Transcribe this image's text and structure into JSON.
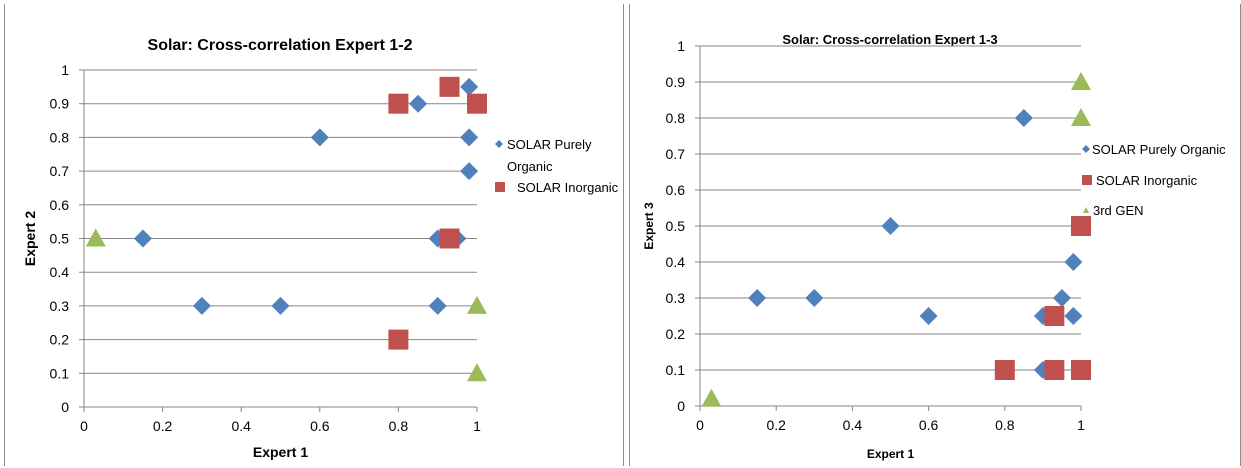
{
  "chart_data": [
    {
      "type": "scatter",
      "title": "Solar: Cross-correlation Expert 1-2",
      "xlabel": "Expert 1",
      "ylabel": "Expert 2",
      "xlim": [
        0,
        1
      ],
      "ylim": [
        0,
        1
      ],
      "xticks": [
        "0",
        "0.2",
        "0.4",
        "0.6",
        "0.8",
        "1"
      ],
      "yticks": [
        "0",
        "0.1",
        "0.2",
        "0.3",
        "0.4",
        "0.5",
        "0.6",
        "0.7",
        "0.8",
        "0.9",
        "1"
      ],
      "grid": "horizontal",
      "legend_position": "right",
      "series": [
        {
          "name": "SOLAR Purely Organic",
          "marker": "diamond",
          "color": "#4f81bd",
          "points": [
            [
              0.98,
              0.95
            ],
            [
              0.85,
              0.9
            ],
            [
              0.6,
              0.8
            ],
            [
              0.98,
              0.8
            ],
            [
              0.98,
              0.7
            ],
            [
              0.15,
              0.5
            ],
            [
              0.9,
              0.5
            ],
            [
              0.95,
              0.5
            ],
            [
              0.3,
              0.3
            ],
            [
              0.5,
              0.3
            ],
            [
              0.9,
              0.3
            ]
          ]
        },
        {
          "name": "SOLAR Inorganic",
          "marker": "square",
          "color": "#c0504d",
          "points": [
            [
              0.93,
              0.95
            ],
            [
              0.8,
              0.9
            ],
            [
              1.0,
              0.9
            ],
            [
              0.93,
              0.5
            ],
            [
              0.8,
              0.2
            ]
          ]
        },
        {
          "marker": "triangle",
          "color": "#9bbb59",
          "points": [
            [
              0.03,
              0.5
            ],
            [
              1.0,
              0.3
            ],
            [
              1.0,
              0.1
            ]
          ]
        }
      ]
    },
    {
      "type": "scatter",
      "title": "Solar: Cross-correlation Expert 1-3",
      "xlabel": "Expert 1",
      "ylabel": "Expert 3",
      "xlim": [
        0,
        1
      ],
      "ylim": [
        0,
        1
      ],
      "xticks": [
        "0",
        "0.2",
        "0.4",
        "0.6",
        "0.8",
        "1"
      ],
      "yticks": [
        "0",
        "0.1",
        "0.2",
        "0.3",
        "0.4",
        "0.5",
        "0.6",
        "0.7",
        "0.8",
        "0.9",
        "1"
      ],
      "grid": "horizontal",
      "legend_position": "right",
      "series": [
        {
          "name": "SOLAR Purely Organic",
          "marker": "diamond",
          "color": "#4f81bd",
          "points": [
            [
              0.85,
              0.8
            ],
            [
              0.5,
              0.5
            ],
            [
              0.98,
              0.4
            ],
            [
              0.15,
              0.3
            ],
            [
              0.3,
              0.3
            ],
            [
              0.95,
              0.3
            ],
            [
              0.6,
              0.25
            ],
            [
              0.9,
              0.25
            ],
            [
              0.98,
              0.25
            ],
            [
              0.9,
              0.1
            ]
          ]
        },
        {
          "name": "SOLAR Inorganic",
          "marker": "square",
          "color": "#c0504d",
          "points": [
            [
              1.0,
              0.5
            ],
            [
              0.93,
              0.25
            ],
            [
              0.8,
              0.1
            ],
            [
              0.93,
              0.1
            ],
            [
              1.0,
              0.1
            ]
          ]
        },
        {
          "name": "3rd GEN",
          "marker": "triangle",
          "color": "#9bbb59",
          "points": [
            [
              1.0,
              0.9
            ],
            [
              1.0,
              0.8
            ],
            [
              0.03,
              0.02
            ]
          ]
        }
      ]
    }
  ]
}
